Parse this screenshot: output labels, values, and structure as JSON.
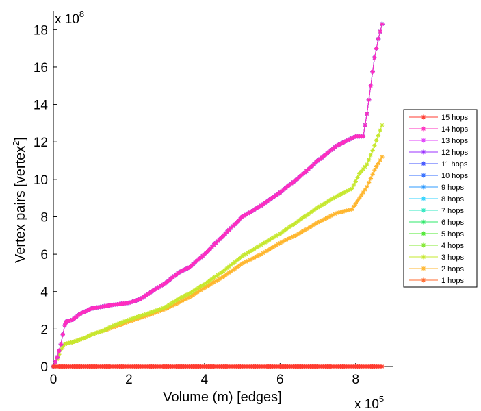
{
  "chart_data": {
    "type": "line",
    "title": "",
    "xlabel": "Volume (m) [edges]",
    "ylabel_main": "Vertex pairs [vertex",
    "ylabel_sup": "2",
    "ylabel_end": "]",
    "x_multiplier": {
      "base": "x 10",
      "exp": "5"
    },
    "y_multiplier": {
      "base": "x 10",
      "exp": "8"
    },
    "x_units": "×10^5 edges",
    "y_units": "×10^8 vertex pairs",
    "xlim": [
      0,
      9
    ],
    "ylim": [
      0,
      19
    ],
    "xticks": [
      0,
      2,
      4,
      6,
      8
    ],
    "yticks": [
      0,
      2,
      4,
      6,
      8,
      10,
      12,
      14,
      16,
      18
    ],
    "grid": false,
    "legend_position": "right",
    "series": [
      {
        "name": "15 hops",
        "color": "#ff3b30",
        "curve": "zero"
      },
      {
        "name": "14 hops",
        "color": "#ff2dbe",
        "curve": "upper"
      },
      {
        "name": "13 hops",
        "color": "#e040fb",
        "curve": "upper"
      },
      {
        "name": "12 hops",
        "color": "#9b30ff",
        "curve": "upper"
      },
      {
        "name": "11 hops",
        "color": "#3f51ff",
        "curve": "upper"
      },
      {
        "name": "10 hops",
        "color": "#2f6bff",
        "curve": "upper"
      },
      {
        "name": "9 hops",
        "color": "#2f9bff",
        "curve": "upper"
      },
      {
        "name": "8 hops",
        "color": "#2fd3ff",
        "curve": "upper"
      },
      {
        "name": "7 hops",
        "color": "#2fe8c0",
        "curve": "upper"
      },
      {
        "name": "6 hops",
        "color": "#2ee86a",
        "curve": "upper"
      },
      {
        "name": "5 hops",
        "color": "#4be82e",
        "curve": "upper"
      },
      {
        "name": "4 hops",
        "color": "#80e82e",
        "curve": "upper"
      },
      {
        "name": "3 hops",
        "color": "#c6e82e",
        "curve": "middle"
      },
      {
        "name": "2 hops",
        "color": "#ffb62e",
        "curve": "lower"
      },
      {
        "name": "1 hops",
        "color": "#ff6a2e",
        "curve": "zero"
      }
    ],
    "curves": {
      "upper": {
        "x": [
          0,
          0.1,
          0.2,
          0.3,
          0.35,
          0.5,
          0.7,
          1.0,
          1.3,
          1.6,
          2.0,
          2.3,
          2.6,
          3.0,
          3.3,
          3.6,
          4.0,
          4.5,
          5.0,
          5.5,
          6.0,
          6.5,
          7.0,
          7.5,
          8.0,
          8.2,
          8.3,
          8.4,
          8.5,
          8.6,
          8.7
        ],
        "y": [
          0,
          0.5,
          1.2,
          2.2,
          2.4,
          2.5,
          2.8,
          3.1,
          3.2,
          3.3,
          3.4,
          3.6,
          4.0,
          4.5,
          5.0,
          5.3,
          6.0,
          7.0,
          8.0,
          8.6,
          9.3,
          10.1,
          11.0,
          11.8,
          12.3,
          12.3,
          13.5,
          15.0,
          16.5,
          17.5,
          18.3
        ]
      },
      "middle": {
        "x": [
          0,
          0.1,
          0.2,
          0.3,
          0.5,
          0.8,
          1.0,
          1.3,
          1.6,
          2.0,
          2.3,
          2.6,
          3.0,
          3.3,
          3.6,
          4.0,
          4.5,
          5.0,
          5.5,
          6.0,
          6.5,
          7.0,
          7.5,
          7.9,
          8.1,
          8.3,
          8.5,
          8.7
        ],
        "y": [
          0,
          0.4,
          0.9,
          1.2,
          1.3,
          1.5,
          1.7,
          1.9,
          2.2,
          2.5,
          2.7,
          2.9,
          3.2,
          3.6,
          3.9,
          4.4,
          5.1,
          5.9,
          6.5,
          7.1,
          7.8,
          8.5,
          9.1,
          9.5,
          10.3,
          10.8,
          11.8,
          12.9
        ]
      },
      "lower": {
        "x": [
          0,
          0.1,
          0.2,
          0.3,
          0.5,
          0.8,
          1.0,
          1.3,
          1.6,
          2.0,
          2.3,
          2.6,
          3.0,
          3.3,
          3.6,
          4.0,
          4.5,
          5.0,
          5.5,
          6.0,
          6.5,
          7.0,
          7.5,
          7.9,
          8.1,
          8.3,
          8.5,
          8.7
        ],
        "y": [
          0,
          0.4,
          0.9,
          1.2,
          1.3,
          1.5,
          1.7,
          1.9,
          2.1,
          2.4,
          2.6,
          2.8,
          3.1,
          3.4,
          3.7,
          4.2,
          4.8,
          5.5,
          6.0,
          6.6,
          7.1,
          7.7,
          8.2,
          8.4,
          9.0,
          9.6,
          10.5,
          11.2
        ]
      },
      "zero": {
        "x": [
          0,
          0.2,
          0.4,
          0.6,
          0.8,
          1.0,
          1.2,
          1.4,
          1.6,
          1.8,
          2.0,
          2.2,
          2.4,
          2.6,
          2.8,
          3.0,
          3.2,
          3.4,
          3.6,
          3.8,
          4.0,
          4.2,
          4.4,
          4.6,
          4.8,
          5.0,
          5.2,
          5.4,
          5.6,
          5.8,
          6.0,
          6.2,
          6.4,
          6.6,
          6.8,
          7.0,
          7.2,
          7.4,
          7.6,
          7.8,
          8.0,
          8.2,
          8.4,
          8.6,
          8.7
        ],
        "y": [
          0,
          0,
          0,
          0,
          0,
          0,
          0,
          0,
          0,
          0,
          0,
          0,
          0,
          0,
          0,
          0,
          0,
          0,
          0,
          0,
          0,
          0,
          0,
          0,
          0,
          0,
          0,
          0,
          0,
          0,
          0,
          0,
          0,
          0,
          0,
          0,
          0,
          0,
          0,
          0,
          0,
          0,
          0,
          0,
          0
        ]
      }
    }
  }
}
